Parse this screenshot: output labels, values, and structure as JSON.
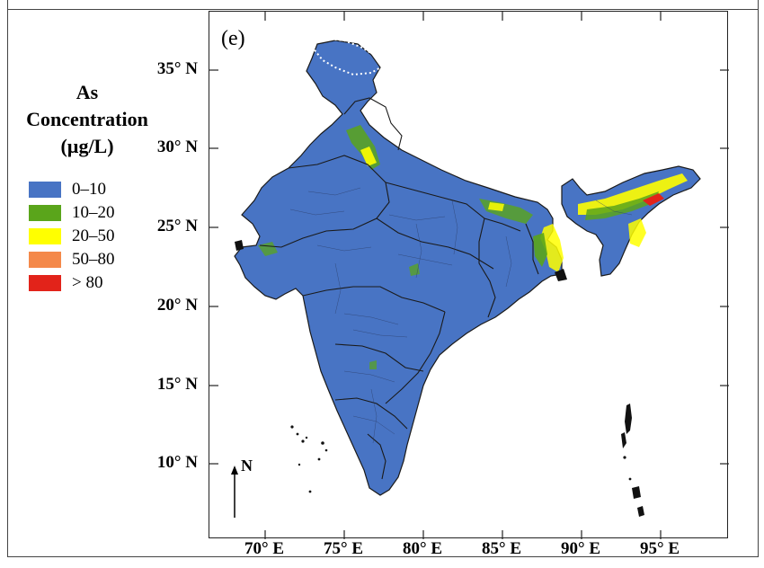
{
  "panel_label": "(e)",
  "legend": {
    "title_lines": [
      "As",
      "Concentration",
      "(µg/L)"
    ],
    "items": [
      {
        "label": "0–10",
        "color": "#4874c4"
      },
      {
        "label": "10–20",
        "color": "#5aa51b"
      },
      {
        "label": "20–50",
        "color": "#ffff00"
      },
      {
        "label": "50–80",
        "color": "#f4894a"
      },
      {
        "label": "> 80",
        "color": "#e2231a"
      }
    ]
  },
  "axes": {
    "latitude_ticks": [
      "35° N",
      "30° N",
      "25° N",
      "20° N",
      "15° N",
      "10° N"
    ],
    "longitude_ticks": [
      "70° E",
      "75° E",
      "80° E",
      "85° E",
      "90° E",
      "95° E"
    ]
  },
  "north_arrow_label": "N",
  "colors": {
    "base_fill": "#4874c4",
    "boundary": "#1a1a1a",
    "island": "#111111"
  }
}
